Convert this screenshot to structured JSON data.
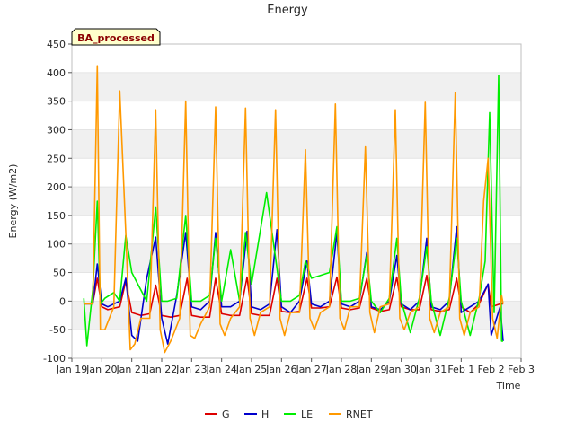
{
  "chart_data": {
    "type": "line",
    "title": "Energy",
    "xlabel": "Time",
    "ylabel": "Energy (W/m2)",
    "ylim": [
      -100,
      450
    ],
    "xlim": [
      0,
      15
    ],
    "yticks": [
      -100,
      -50,
      0,
      50,
      100,
      150,
      200,
      250,
      300,
      350,
      400,
      450
    ],
    "xtick_labels": [
      "Jan 19",
      "Jan 20",
      "Jan 21",
      "Jan 22",
      "Jan 23",
      "Jan 24",
      "Jan 25",
      "Jan 26",
      "Jan 27",
      "Jan 28",
      "Jan 29",
      "Jan 30",
      "Jan 31",
      "Feb 1",
      "Feb 2",
      "Feb 3"
    ],
    "badge": "BA_processed",
    "grid": "horizontal bands",
    "legend_position": "bottom-center",
    "series": [
      {
        "name": "G",
        "color": "#dd0000",
        "x": [
          0.4,
          0.7,
          0.85,
          1.0,
          1.2,
          1.6,
          1.8,
          2.0,
          2.3,
          2.6,
          2.8,
          3.0,
          3.3,
          3.6,
          3.85,
          4.0,
          4.3,
          4.6,
          4.8,
          5.0,
          5.3,
          5.6,
          5.85,
          6.0,
          6.3,
          6.6,
          6.85,
          7.0,
          7.3,
          7.6,
          7.85,
          8.0,
          8.3,
          8.6,
          8.85,
          9.0,
          9.3,
          9.6,
          9.85,
          10.0,
          10.3,
          10.6,
          10.85,
          11.0,
          11.3,
          11.6,
          11.85,
          12.0,
          12.3,
          12.6,
          12.85,
          13.0,
          13.3,
          13.6,
          13.9,
          14.0,
          14.3,
          14.4
        ],
        "y": [
          -5,
          -3,
          40,
          -10,
          -15,
          -10,
          35,
          -20,
          -25,
          -22,
          28,
          -25,
          -28,
          -25,
          40,
          -25,
          -28,
          -28,
          40,
          -22,
          -25,
          -25,
          42,
          -22,
          -25,
          -25,
          40,
          -18,
          -20,
          -18,
          40,
          -12,
          -12,
          -10,
          42,
          -12,
          -15,
          -12,
          40,
          -12,
          -18,
          -15,
          42,
          -10,
          -15,
          -15,
          45,
          -15,
          -18,
          -15,
          40,
          -10,
          -20,
          -5,
          30,
          -10,
          -5,
          -5
        ]
      },
      {
        "name": "H",
        "color": "#0000cc",
        "x": [
          0.4,
          0.7,
          0.85,
          1.0,
          1.2,
          1.6,
          1.8,
          2.0,
          2.2,
          2.5,
          2.8,
          3.0,
          3.2,
          3.5,
          3.8,
          4.0,
          4.3,
          4.6,
          4.8,
          5.0,
          5.3,
          5.6,
          5.85,
          6.0,
          6.3,
          6.6,
          6.85,
          7.0,
          7.3,
          7.6,
          7.85,
          8.0,
          8.3,
          8.6,
          8.85,
          9.0,
          9.3,
          9.6,
          9.85,
          10.0,
          10.3,
          10.6,
          10.85,
          11.0,
          11.3,
          11.6,
          11.85,
          12.0,
          12.3,
          12.6,
          12.85,
          13.0,
          13.3,
          13.6,
          13.9,
          14.0,
          14.3,
          14.4
        ],
        "y": [
          -5,
          -5,
          65,
          -5,
          -10,
          0,
          40,
          -60,
          -70,
          40,
          112,
          -30,
          -75,
          10,
          120,
          -10,
          -15,
          0,
          120,
          -10,
          -10,
          0,
          122,
          -10,
          -15,
          -5,
          125,
          -10,
          -20,
          0,
          70,
          -5,
          -10,
          0,
          120,
          -5,
          -10,
          0,
          85,
          -10,
          -15,
          0,
          80,
          -5,
          -15,
          0,
          110,
          -10,
          -15,
          0,
          130,
          -20,
          -10,
          0,
          30,
          -60,
          -10,
          -70
        ]
      },
      {
        "name": "LE",
        "color": "#00ee00",
        "x": [
          0.4,
          0.5,
          0.7,
          0.85,
          0.95,
          1.1,
          1.4,
          1.6,
          1.8,
          2.0,
          2.2,
          2.5,
          2.8,
          3.0,
          3.2,
          3.5,
          3.8,
          4.0,
          4.3,
          4.6,
          4.8,
          5.0,
          5.3,
          5.6,
          5.8,
          6.0,
          6.5,
          7.0,
          7.3,
          7.6,
          7.8,
          8.0,
          8.3,
          8.6,
          8.85,
          9.0,
          9.3,
          9.6,
          9.85,
          10.0,
          10.3,
          10.6,
          10.85,
          11.0,
          11.3,
          11.6,
          11.85,
          12.0,
          12.3,
          12.6,
          12.85,
          13.0,
          13.3,
          13.6,
          13.8,
          13.95,
          14.1,
          14.25,
          14.35,
          14.4
        ],
        "y": [
          5,
          -78,
          20,
          175,
          -5,
          5,
          15,
          0,
          115,
          50,
          30,
          0,
          165,
          0,
          0,
          5,
          150,
          0,
          0,
          10,
          110,
          0,
          90,
          0,
          120,
          30,
          190,
          0,
          0,
          10,
          70,
          40,
          45,
          50,
          130,
          0,
          0,
          5,
          80,
          0,
          -20,
          5,
          110,
          0,
          -55,
          5,
          95,
          0,
          -60,
          5,
          110,
          0,
          -60,
          5,
          70,
          330,
          -20,
          395,
          -70,
          -70
        ]
      },
      {
        "name": "RNET",
        "color": "#ff9900",
        "x": [
          0.4,
          0.7,
          0.85,
          0.95,
          1.1,
          1.4,
          1.6,
          1.8,
          1.95,
          2.1,
          2.3,
          2.6,
          2.8,
          2.95,
          3.1,
          3.3,
          3.6,
          3.8,
          3.95,
          4.1,
          4.3,
          4.6,
          4.8,
          4.95,
          5.1,
          5.3,
          5.6,
          5.8,
          5.95,
          6.1,
          6.3,
          6.6,
          6.8,
          6.95,
          7.1,
          7.3,
          7.6,
          7.8,
          7.95,
          8.1,
          8.3,
          8.6,
          8.8,
          8.95,
          9.1,
          9.3,
          9.6,
          9.8,
          9.95,
          10.1,
          10.3,
          10.6,
          10.8,
          10.95,
          11.1,
          11.3,
          11.6,
          11.8,
          11.95,
          12.1,
          12.3,
          12.6,
          12.8,
          12.95,
          13.1,
          13.3,
          13.6,
          13.75,
          13.9,
          14.05,
          14.2,
          14.35,
          14.4
        ],
        "y": [
          -5,
          -5,
          412,
          -50,
          -50,
          -10,
          368,
          120,
          -85,
          -75,
          -30,
          -30,
          335,
          -50,
          -90,
          -70,
          -30,
          350,
          -60,
          -65,
          -40,
          -10,
          340,
          -40,
          -60,
          -30,
          -10,
          338,
          -30,
          -60,
          -20,
          -10,
          335,
          -30,
          -60,
          -20,
          -20,
          265,
          -30,
          -50,
          -20,
          -10,
          345,
          -30,
          -50,
          -10,
          -10,
          270,
          -20,
          -55,
          -10,
          -5,
          335,
          -30,
          -50,
          -20,
          -10,
          348,
          -30,
          -55,
          -20,
          -10,
          365,
          -30,
          -60,
          -20,
          -10,
          175,
          250,
          -30,
          -65,
          10,
          -5
        ]
      }
    ]
  }
}
